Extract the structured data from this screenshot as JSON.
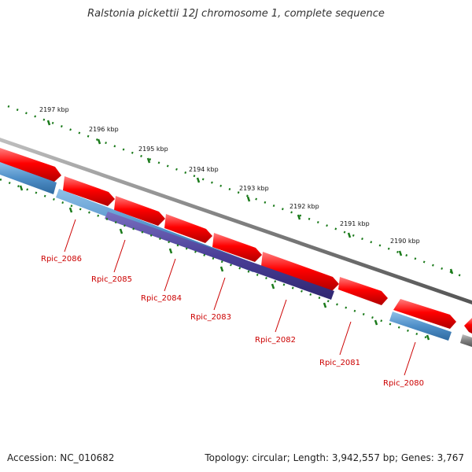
{
  "title": "Ralstonia pickettii 12J chromosome 1, complete sequence",
  "footer": {
    "accession": "Accession: NC_010682",
    "summary": "Topology: circular; Length: 3,942,557 bp; Genes: 3,767"
  },
  "colors": {
    "forward_gene": "#ff0000",
    "reverse_gene": "#4f8fc8",
    "reverse_gene_alt": "#4a3f98",
    "backbone": "#808080",
    "tick": "#1a7a1a",
    "label": "#cc0000"
  },
  "scale_ticks": [
    "2197 kbp",
    "2196 kbp",
    "2195 kbp",
    "2194 kbp",
    "2193 kbp",
    "2192 kbp",
    "2191 kbp",
    "2190 kbp"
  ],
  "gene_labels": [
    "Rpic_2086",
    "Rpic_2085",
    "Rpic_2084",
    "Rpic_2083",
    "Rpic_2082",
    "Rpic_2081",
    "Rpic_2080"
  ]
}
